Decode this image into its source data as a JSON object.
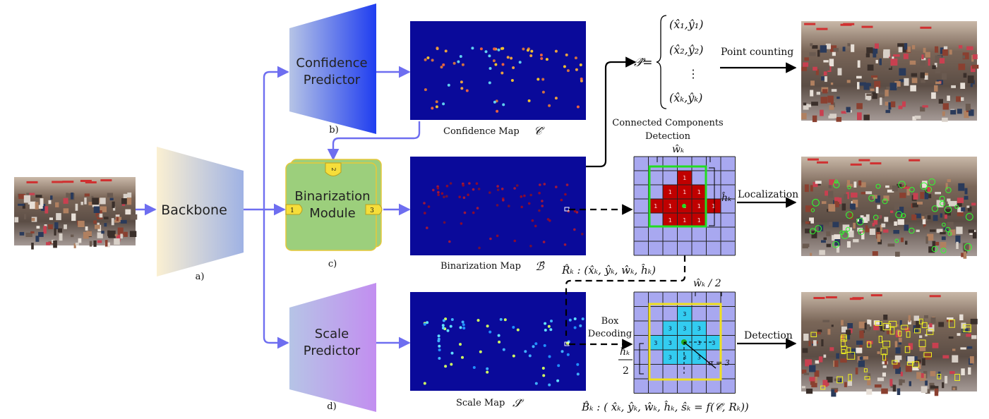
{
  "colors": {
    "arrow": "#6e6ef0",
    "map_bg": "#0a0a9a",
    "grid_fill": "#a8a8f0",
    "grid_line": "#222222",
    "red_cell": "#c00000",
    "cyan_cell": "#33ccf0",
    "green_box": "#22dd22",
    "yellow_box": "#f0e020",
    "binarization_fill": "#9ccf7c",
    "binarization_border": "#e6c83a"
  },
  "labels": {
    "backbone": "Backbone",
    "confidence_predictor_line1": "Confidence",
    "confidence_predictor_line2": "Predictor",
    "binarization_line1": "Binarization",
    "binarization_line2": "Module",
    "scale_predictor_line1": "Scale",
    "scale_predictor_line2": "Predictor",
    "tag_a": "a)",
    "tag_b": "b)",
    "tag_c": "c)",
    "tag_d": "d)",
    "port_1": "1",
    "port_2": "2",
    "port_3": "3",
    "confidence_map": "Confidence Map",
    "confidence_symbol": "𝒞̂",
    "binarization_map": "Binarization Map",
    "binarization_symbol": "ℬ̂",
    "scale_map": "Scale Map",
    "scale_symbol": "𝒮̂",
    "connected_components_line1": "Connected Components",
    "connected_components_line2": "Detection",
    "point_counting": "Point counting",
    "localization": "Localization",
    "detection": "Detection",
    "box_decoding_line1": "Box",
    "box_decoding_line2": "Decoding",
    "point_set_lhs": "𝒫̂=",
    "point_1": "(x̂₁,ŷ₁)",
    "point_2": "(x̂₂,ŷ₂)",
    "point_dots": "⋮",
    "point_k": "(x̂ₖ,ŷₖ)",
    "region_formula": "R̂ₖ : (x̂ₖ, ŷₖ, ŵₖ, ĥₖ)",
    "box_formula": "B̂ₖ : ( x̂ₖ, ŷₖ, ŵₖ, ĥₖ, ŝₖ = f(𝒞̂, Rₖ))",
    "w_hat": "ŵₖ",
    "h_hat": "ĥₖ",
    "w_half": "ŵₖ / 2",
    "h_half_num": "hₖ",
    "h_half_den": "2",
    "sigma_label": "σ = 3",
    "red_cell_value": "1",
    "cyan_cell_value": "3"
  }
}
